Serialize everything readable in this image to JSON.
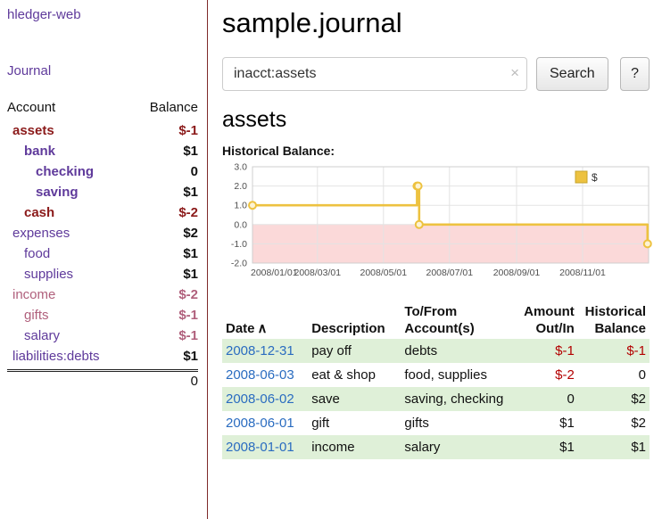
{
  "colors": {
    "purple": "#5f3a9b",
    "sidebar_negative": "#8b1a1a",
    "rose": "#b0607c",
    "table_negative": "#b30000",
    "link_blue": "#2a6cc0",
    "row_green": "#dff0d8",
    "divider": "#7e2a2a",
    "chart_line": "#EDC240",
    "chart_negative_bg": "#fbd9d9"
  },
  "app": {
    "brand": "hledger-web",
    "nav_journal": "Journal"
  },
  "sidebar": {
    "header": {
      "account": "Account",
      "balance": "Balance"
    },
    "accounts": [
      {
        "name": "assets",
        "balance": "$-1",
        "level": 0,
        "emph": true,
        "name_tone": "neg",
        "balance_tone": "neg"
      },
      {
        "name": "bank",
        "balance": "$1",
        "level": 1,
        "emph": true,
        "name_tone": "link",
        "balance_tone": "plain"
      },
      {
        "name": "checking",
        "balance": "0",
        "level": 2,
        "emph": true,
        "name_tone": "link",
        "balance_tone": "plain"
      },
      {
        "name": "saving",
        "balance": "$1",
        "level": 2,
        "emph": true,
        "name_tone": "link",
        "balance_tone": "plain"
      },
      {
        "name": "cash",
        "balance": "$-2",
        "level": 1,
        "emph": true,
        "name_tone": "neg",
        "balance_tone": "neg"
      },
      {
        "name": "expenses",
        "balance": "$2",
        "level": 0,
        "emph": false,
        "name_tone": "link",
        "balance_tone": "plain"
      },
      {
        "name": "food",
        "balance": "$1",
        "level": 1,
        "emph": false,
        "name_tone": "link",
        "balance_tone": "plain"
      },
      {
        "name": "supplies",
        "balance": "$1",
        "level": 1,
        "emph": false,
        "name_tone": "link",
        "balance_tone": "plain"
      },
      {
        "name": "income",
        "balance": "$-2",
        "level": 0,
        "emph": false,
        "name_tone": "rose",
        "balance_tone": "rose"
      },
      {
        "name": "gifts",
        "balance": "$-1",
        "level": 1,
        "emph": false,
        "name_tone": "rose",
        "balance_tone": "rose"
      },
      {
        "name": "salary",
        "balance": "$-1",
        "level": 1,
        "emph": false,
        "name_tone": "link",
        "balance_tone": "rose"
      },
      {
        "name": "liabilities:debts",
        "balance": "$1",
        "level": 0,
        "emph": false,
        "name_tone": "link",
        "balance_tone": "plain"
      }
    ],
    "total": "0"
  },
  "main": {
    "title": "sample.journal",
    "search": {
      "value": "inacct:assets",
      "clear_icon": "×",
      "button_label": "Search",
      "help_label": "?"
    },
    "account_heading": "assets",
    "chart_label": "Historical Balance:"
  },
  "chart_data": {
    "type": "line",
    "step": true,
    "title": "Historical Balance:",
    "xlabel": "",
    "ylabel": "",
    "ylim": [
      -2,
      3
    ],
    "xlim": [
      "2008-01-01",
      "2009-01-01"
    ],
    "grid": true,
    "negative_region_shaded": true,
    "yticks": [
      {
        "value": 3,
        "label": "3.0"
      },
      {
        "value": 2,
        "label": "2.0"
      },
      {
        "value": 1,
        "label": "1.0"
      },
      {
        "value": 0,
        "label": "0.0"
      },
      {
        "value": -1,
        "label": "-1.0"
      },
      {
        "value": -2,
        "label": "-2.0"
      }
    ],
    "xticks": [
      {
        "date": "2008-01-01",
        "label": "2008/01/01"
      },
      {
        "date": "2008-03-01",
        "label": "2008/03/01"
      },
      {
        "date": "2008-05-01",
        "label": "2008/05/01"
      },
      {
        "date": "2008-07-01",
        "label": "2008/07/01"
      },
      {
        "date": "2008-09-01",
        "label": "2008/09/01"
      },
      {
        "date": "2008-11-01",
        "label": "2008/11/01"
      }
    ],
    "series": [
      {
        "name": "$",
        "color": "#EDC240",
        "marker_fill": "#fdf3d3",
        "points": [
          {
            "date": "2008-01-01",
            "value": 1
          },
          {
            "date": "2008-06-01",
            "value": 2
          },
          {
            "date": "2008-06-02",
            "value": 2
          },
          {
            "date": "2008-06-03",
            "value": 0
          },
          {
            "date": "2008-12-31",
            "value": -1
          }
        ]
      }
    ],
    "legend": {
      "label": "$",
      "position": "top-right"
    }
  },
  "register": {
    "headers": [
      {
        "lines": [
          "Date"
        ],
        "align": "left",
        "sort_indicator": "∧"
      },
      {
        "lines": [
          "Description"
        ],
        "align": "left"
      },
      {
        "lines": [
          "To/From",
          "Account(s)"
        ],
        "align": "left"
      },
      {
        "lines": [
          "Amount",
          "Out/In"
        ],
        "align": "right"
      },
      {
        "lines": [
          "Historical",
          "Balance"
        ],
        "align": "right"
      }
    ],
    "rows": [
      {
        "date": "2008-12-31",
        "description": "pay off",
        "accounts": "debts",
        "amount": "$-1",
        "balance": "$-1",
        "amount_negative": true,
        "balance_negative": true,
        "shaded": true
      },
      {
        "date": "2008-06-03",
        "description": "eat & shop",
        "accounts": "food, supplies",
        "amount": "$-2",
        "balance": "0",
        "amount_negative": true,
        "balance_negative": false,
        "shaded": false
      },
      {
        "date": "2008-06-02",
        "description": "save",
        "accounts": "saving, checking",
        "amount": "0",
        "balance": "$2",
        "amount_negative": false,
        "balance_negative": false,
        "shaded": true
      },
      {
        "date": "2008-06-01",
        "description": "gift",
        "accounts": "gifts",
        "amount": "$1",
        "balance": "$2",
        "amount_negative": false,
        "balance_negative": false,
        "shaded": false
      },
      {
        "date": "2008-01-01",
        "description": "income",
        "accounts": "salary",
        "amount": "$1",
        "balance": "$1",
        "amount_negative": false,
        "balance_negative": false,
        "shaded": true
      }
    ]
  }
}
